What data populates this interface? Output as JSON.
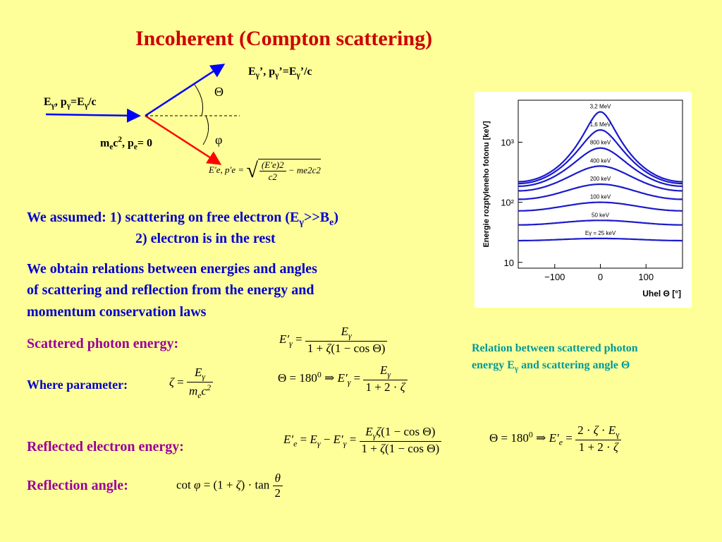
{
  "title": "Incoherent (Compton scattering)",
  "diagram": {
    "incoming_label": {
      "e": "E",
      "g": "γ",
      "mid": ", p",
      "g2": "γ",
      "eq": "=E",
      "g3": "γ",
      "end": "/c"
    },
    "scattered_label": {
      "e": "E",
      "g": "γ",
      "a": "’, p",
      "g2": "γ",
      "b": "’=E",
      "g3": "γ",
      "c": "’/c"
    },
    "electron_label": {
      "m": "m",
      "e": "e",
      "c": "c",
      "two": "2",
      "p": ", p",
      "e2": "e",
      "z": "= 0"
    },
    "theta": "Θ",
    "phi": "φ",
    "formula": {
      "lhs": "E′e, p′e =",
      "num": "(E′e)2",
      "den": "c2",
      "tail": "− me2c2"
    }
  },
  "assumed": {
    "line1": "We assumed: 1) scattering on free electron (",
    "eg": "E",
    "g": "γ",
    "gt": ">>B",
    "e": "e",
    "close": ")",
    "line2": "2) electron is in the rest"
  },
  "obtain": {
    "l1": "We obtain relations between energies and angles",
    "l2": "of scattering and reflection from the energy and",
    "l3": "momentum conservation laws"
  },
  "scattered_photon": {
    "label": "Scattered photon energy:"
  },
  "where": {
    "label": "Where parameter:"
  },
  "reflected_electron": {
    "label": "Reflected electron energy:"
  },
  "reflection_angle": {
    "label": "Reflection angle:"
  },
  "note": {
    "l1": "Relation between scattered photon",
    "l2a": "energy E",
    "g": "γ",
    "l2b": " and scattering angle Θ"
  },
  "chart_data": {
    "type": "line",
    "ylabel": "Energie rozptyleneho fotonu [keV]",
    "xlabel": "Uhel Θ [°]",
    "x_ticks": [
      "−100",
      "0",
      "100"
    ],
    "y_ticks": [
      "10",
      "10²",
      "10³"
    ],
    "y_scale": "log",
    "xlim": [
      -180,
      180
    ],
    "ylim": [
      8,
      5000
    ],
    "series": [
      {
        "name": "3,2 MeV",
        "values_at_0": 3200,
        "values_at_180": 220
      },
      {
        "name": "1,6 MeV",
        "values_at_0": 1600,
        "values_at_180": 205
      },
      {
        "name": "800 keV",
        "values_at_0": 800,
        "values_at_180": 185
      },
      {
        "name": "400 keV",
        "values_at_0": 400,
        "values_at_180": 155
      },
      {
        "name": "200 keV",
        "values_at_0": 200,
        "values_at_180": 112
      },
      {
        "name": "100 keV",
        "values_at_0": 100,
        "values_at_180": 72
      },
      {
        "name": "50 keV",
        "values_at_0": 50,
        "values_at_180": 42
      },
      {
        "name": "Eγ = 25 keV",
        "values_at_0": 25,
        "values_at_180": 23
      }
    ]
  }
}
